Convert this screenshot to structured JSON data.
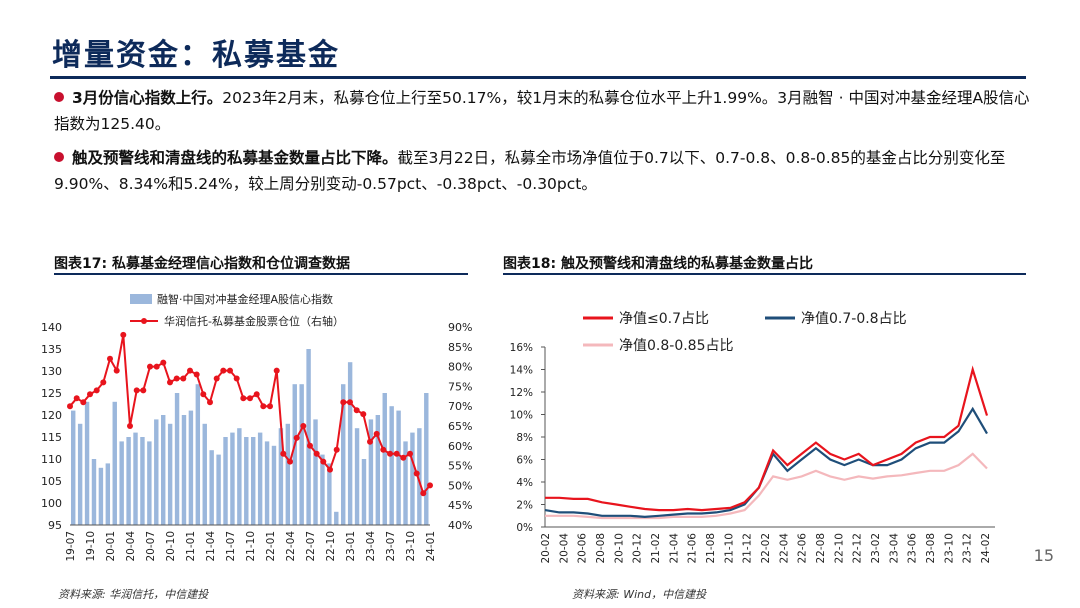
{
  "slide": {
    "title": "增量资金：私募基金",
    "page_number": "15",
    "bullets": [
      {
        "lead": "3月份信心指数上行。",
        "text": "2023年2月末，私募仓位上行至50.17%，较1月末的私募仓位水平上升1.99%。3月融智 · 中国对冲基金经理A股信心指数为125.40。"
      },
      {
        "lead": "触及预警线和清盘线的私募基金数量占比下降。",
        "text": "截至3月22日，私募全市场净值位于0.7以下、0.7-0.8、0.8-0.85的基金占比分别变化至9.90%、8.34%和5.24%，较上周分别变动-0.57pct、-0.38pct、-0.30pct。"
      }
    ]
  },
  "chart17": {
    "title": "图表17:   私募基金经理信心指数和仓位调查数据",
    "source": "资料来源:  华润信托，中信建投"
  },
  "chart18": {
    "title": "图表18:   触及预警线和清盘线的私募基金数量占比",
    "source": "资料来源:  Wind，中信建投"
  },
  "colors": {
    "navy": "#0d2a5a",
    "red": "#e8141d",
    "bar_blue": "#9bb7dc",
    "dark_blue": "#1f4e79",
    "pink": "#f4b8bc"
  },
  "chart_data": [
    {
      "type": "bar",
      "title": "私募基金经理信心指数和仓位调查数据",
      "x_tick_labels": [
        "19-07",
        "19-10",
        "20-01",
        "20-04",
        "20-07",
        "20-10",
        "21-01",
        "21-04",
        "21-07",
        "21-10",
        "22-01",
        "22-04",
        "22-07",
        "22-10",
        "23-01",
        "23-04",
        "23-07",
        "23-10",
        "24-01"
      ],
      "ylim_left": [
        95,
        140
      ],
      "ylim_right": [
        40,
        90
      ],
      "left_ticks": [
        95,
        100,
        105,
        110,
        115,
        120,
        125,
        130,
        135,
        140
      ],
      "right_ticks": [
        "40%",
        "45%",
        "50%",
        "55%",
        "60%",
        "65%",
        "70%",
        "75%",
        "80%",
        "85%",
        "90%"
      ],
      "series": [
        {
          "name": "融智·中国对冲基金经理A股信心指数",
          "axis": "left",
          "type": "bar",
          "values": [
            121,
            118,
            123,
            110,
            108,
            109,
            123,
            114,
            115,
            116,
            115,
            114,
            119,
            120,
            118,
            125,
            120,
            121,
            127,
            118,
            112,
            111,
            115,
            116,
            117,
            115,
            115,
            116,
            114,
            113,
            117,
            118,
            127,
            127,
            135,
            119,
            111,
            109,
            98,
            127,
            132,
            117,
            110,
            119,
            120,
            125,
            122,
            121,
            114,
            116,
            117,
            125
          ]
        },
        {
          "name": "华润信托-私募基金股票仓位（右轴）",
          "axis": "right",
          "type": "line",
          "values": [
            70,
            72,
            71,
            73,
            74,
            76,
            82,
            79,
            88,
            65,
            74,
            74,
            80,
            80,
            81,
            76,
            77,
            77,
            79,
            78,
            73,
            71,
            77,
            79,
            79,
            77,
            72,
            72,
            73,
            70,
            70,
            79,
            58,
            56,
            62,
            65,
            60,
            58,
            56,
            54,
            59,
            71,
            71,
            69,
            68,
            61,
            63,
            59,
            58,
            58,
            57,
            58,
            53,
            48,
            50
          ]
        }
      ]
    },
    {
      "type": "line",
      "title": "触及预警线和清盘线的私募基金数量占比",
      "x_tick_labels": [
        "20-02",
        "20-04",
        "20-06",
        "20-08",
        "20-10",
        "20-12",
        "21-02",
        "21-04",
        "21-06",
        "21-08",
        "21-10",
        "21-12",
        "22-02",
        "22-04",
        "22-06",
        "22-08",
        "22-10",
        "22-12",
        "23-02",
        "23-04",
        "23-06",
        "23-08",
        "23-10",
        "23-12",
        "24-02"
      ],
      "y_ticks": [
        "0%",
        "2%",
        "4%",
        "6%",
        "8%",
        "10%",
        "12%",
        "14%",
        "16%"
      ],
      "ylim": [
        0,
        16
      ],
      "series": [
        {
          "name": "净值≤0.7占比",
          "values": [
            2.6,
            2.6,
            2.5,
            2.5,
            2.2,
            2.0,
            1.8,
            1.6,
            1.5,
            1.5,
            1.6,
            1.5,
            1.6,
            1.7,
            2.2,
            3.5,
            6.8,
            5.5,
            6.5,
            7.5,
            6.5,
            6.0,
            6.5,
            5.5,
            6.0,
            6.5,
            7.5,
            8.0,
            8.0,
            9.0,
            14.0,
            9.9
          ]
        },
        {
          "name": "净值0.7-0.8占比",
          "values": [
            1.5,
            1.3,
            1.3,
            1.2,
            1.0,
            1.0,
            1.0,
            0.9,
            1.0,
            1.1,
            1.2,
            1.2,
            1.3,
            1.5,
            2.0,
            3.5,
            6.5,
            5.0,
            6.0,
            7.0,
            6.0,
            5.5,
            6.0,
            5.5,
            5.5,
            6.0,
            7.0,
            7.5,
            7.5,
            8.5,
            10.5,
            8.3
          ]
        },
        {
          "name": "净值0.8-0.85占比",
          "values": [
            1.0,
            1.0,
            1.0,
            0.9,
            0.8,
            0.8,
            0.8,
            0.8,
            0.8,
            0.9,
            0.9,
            0.9,
            1.0,
            1.2,
            1.5,
            2.8,
            4.5,
            4.2,
            4.5,
            5.0,
            4.5,
            4.2,
            4.5,
            4.3,
            4.5,
            4.6,
            4.8,
            5.0,
            5.0,
            5.5,
            6.5,
            5.2
          ]
        }
      ]
    }
  ]
}
